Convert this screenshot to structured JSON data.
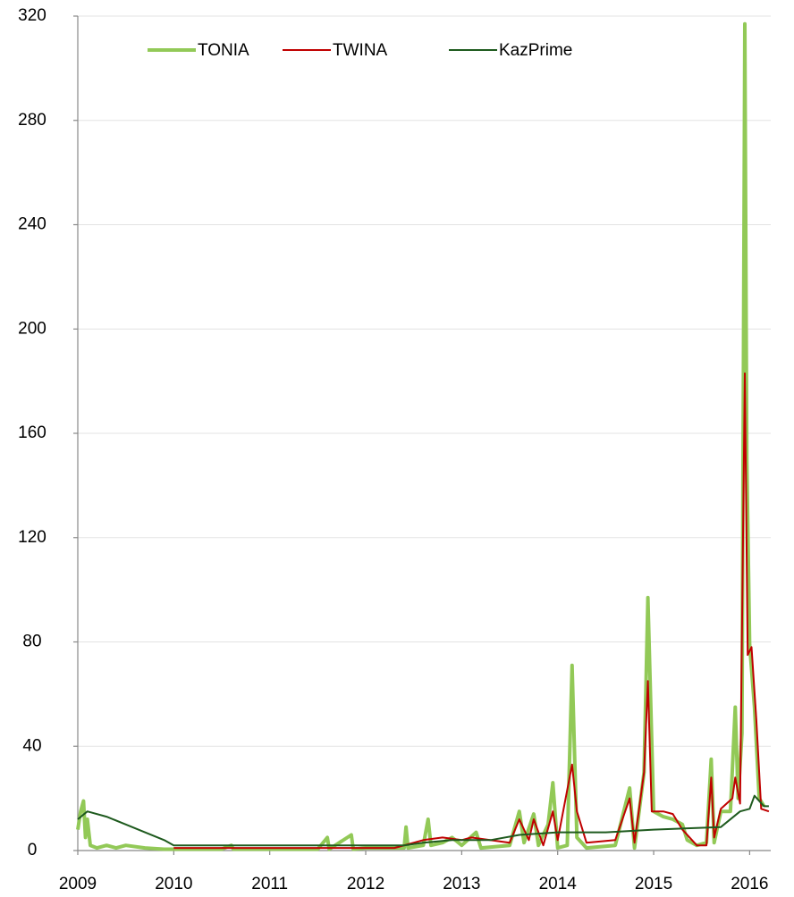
{
  "chart_data": {
    "type": "line",
    "xlim": [
      2009,
      2016.22
    ],
    "xticks": [
      2009,
      2010,
      2011,
      2012,
      2013,
      2014,
      2015,
      2016
    ],
    "ylim": [
      0,
      320
    ],
    "yticks": [
      0,
      40,
      80,
      120,
      160,
      200,
      240,
      280,
      320
    ],
    "grid": true,
    "legend": "top",
    "series": [
      {
        "name": "TONIA",
        "color": "#92c957",
        "x": [
          2009.0,
          2009.03,
          2009.06,
          2009.08,
          2009.1,
          2009.13,
          2009.2,
          2009.3,
          2009.4,
          2009.5,
          2009.7,
          2009.9,
          2010.0,
          2010.5,
          2010.6,
          2010.62,
          2011.0,
          2011.5,
          2011.6,
          2011.62,
          2011.85,
          2011.87,
          2012.0,
          2012.4,
          2012.42,
          2012.44,
          2012.6,
          2012.65,
          2012.68,
          2012.8,
          2012.9,
          2013.0,
          2013.15,
          2013.2,
          2013.5,
          2013.6,
          2013.65,
          2013.75,
          2013.8,
          2013.9,
          2013.95,
          2014.0,
          2014.1,
          2014.15,
          2014.2,
          2014.3,
          2014.6,
          2014.75,
          2014.8,
          2014.9,
          2014.94,
          2015.0,
          2015.1,
          2015.2,
          2015.3,
          2015.35,
          2015.45,
          2015.55,
          2015.6,
          2015.63,
          2015.7,
          2015.8,
          2015.85,
          2015.88,
          2015.92,
          2015.95,
          2015.97,
          2016.0,
          2016.05,
          2016.1,
          2016.15
        ],
        "values": [
          8,
          15,
          19,
          5,
          12,
          2,
          1,
          2,
          1,
          2,
          1,
          0.5,
          0.5,
          0.5,
          2,
          0.5,
          0.5,
          0.5,
          5,
          0.5,
          6,
          0.5,
          1,
          1,
          9,
          1,
          2,
          12,
          2,
          3,
          5,
          2,
          7,
          1,
          2,
          15,
          3,
          14,
          2,
          10,
          26,
          1,
          2,
          71,
          5,
          1,
          2,
          24,
          1,
          30,
          97,
          15,
          13,
          12,
          10,
          4,
          2,
          3,
          35,
          3,
          15,
          15,
          55,
          20,
          45,
          317,
          150,
          79,
          55,
          20,
          17
        ]
      },
      {
        "name": "TWINA",
        "color": "#c00000",
        "x": [
          2010.0,
          2012.3,
          2012.6,
          2012.8,
          2013.0,
          2013.1,
          2013.5,
          2013.6,
          2013.7,
          2013.75,
          2013.85,
          2013.95,
          2014.0,
          2014.15,
          2014.2,
          2014.3,
          2014.6,
          2014.75,
          2014.8,
          2014.9,
          2014.94,
          2014.98,
          2015.1,
          2015.2,
          2015.3,
          2015.45,
          2015.55,
          2015.6,
          2015.63,
          2015.7,
          2015.82,
          2015.85,
          2015.9,
          2015.95,
          2015.98,
          2016.02,
          2016.07,
          2016.12,
          2016.2
        ],
        "values": [
          1,
          1,
          4,
          5,
          4,
          5,
          3,
          12,
          4,
          12,
          2,
          15,
          4,
          33,
          15,
          3,
          4,
          20,
          3,
          30,
          65,
          15,
          15,
          14,
          8,
          2,
          2,
          28,
          5,
          16,
          20,
          28,
          18,
          183,
          75,
          78,
          50,
          16,
          15
        ]
      },
      {
        "name": "KazPrime",
        "color": "#1e5a1e",
        "x": [
          2009.0,
          2009.1,
          2009.3,
          2009.5,
          2009.7,
          2009.9,
          2010.0,
          2012.4,
          2012.6,
          2012.9,
          2013.3,
          2013.6,
          2014.0,
          2014.5,
          2015.0,
          2015.7,
          2015.9,
          2016.0,
          2016.05,
          2016.15,
          2016.2
        ],
        "values": [
          12,
          15,
          13,
          10,
          7,
          4,
          2,
          2,
          3,
          4,
          4,
          6,
          7,
          7,
          8,
          9,
          15,
          16,
          21,
          17,
          17
        ]
      }
    ]
  }
}
